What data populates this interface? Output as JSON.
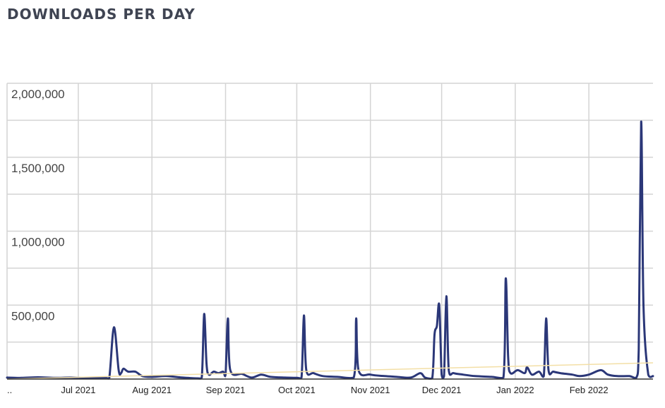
{
  "chart_data": {
    "type": "line",
    "title": "DOWNLOADS PER DAY",
    "xlabel": "",
    "ylabel": "",
    "x_range": [
      "2021-06-01",
      "2022-02-28"
    ],
    "ylim": [
      0,
      2000000
    ],
    "y_ticks": [
      {
        "value": 2000000,
        "label": "2,000,000"
      },
      {
        "value": 1500000,
        "label": "1,500,000"
      },
      {
        "value": 1000000,
        "label": "1,000,000"
      },
      {
        "value": 500000,
        "label": "500,000"
      }
    ],
    "x_ticks": [
      {
        "date": "2021-06-01",
        "label": ".."
      },
      {
        "date": "2021-07-01",
        "label": "Jul 2021"
      },
      {
        "date": "2021-08-01",
        "label": "Aug 2021"
      },
      {
        "date": "2021-09-01",
        "label": "Sep 2021"
      },
      {
        "date": "2021-10-01",
        "label": "Oct 2021"
      },
      {
        "date": "2021-11-01",
        "label": "Nov 2021"
      },
      {
        "date": "2021-12-01",
        "label": "Dec 2021"
      },
      {
        "date": "2022-01-01",
        "label": "Jan 2022"
      },
      {
        "date": "2022-02-01",
        "label": "Feb 2022"
      }
    ],
    "grid": true,
    "colors": {
      "series": "#2b3778",
      "trend": "#f3dfa6",
      "grid": "#d4d4d4",
      "axis": "#333333"
    },
    "series": [
      {
        "role": "downloads",
        "points": [
          [
            "2021-06-01",
            10000
          ],
          [
            "2021-06-07",
            8000
          ],
          [
            "2021-06-14",
            12000
          ],
          [
            "2021-06-21",
            8000
          ],
          [
            "2021-06-28",
            10000
          ],
          [
            "2021-07-05",
            6000
          ],
          [
            "2021-07-12",
            9000
          ],
          [
            "2021-07-14",
            5000
          ],
          [
            "2021-07-16",
            350000
          ],
          [
            "2021-07-18",
            60000
          ],
          [
            "2021-07-19",
            40000
          ],
          [
            "2021-07-20",
            70000
          ],
          [
            "2021-07-22",
            50000
          ],
          [
            "2021-07-25",
            50000
          ],
          [
            "2021-07-28",
            20000
          ],
          [
            "2021-08-01",
            15000
          ],
          [
            "2021-08-07",
            20000
          ],
          [
            "2021-08-14",
            10000
          ],
          [
            "2021-08-20",
            5000
          ],
          [
            "2021-08-22",
            10000
          ],
          [
            "2021-08-23",
            440000
          ],
          [
            "2021-08-24",
            100000
          ],
          [
            "2021-08-25",
            30000
          ],
          [
            "2021-08-27",
            50000
          ],
          [
            "2021-08-29",
            40000
          ],
          [
            "2021-08-31",
            50000
          ],
          [
            "2021-09-01",
            30000
          ],
          [
            "2021-09-02",
            410000
          ],
          [
            "2021-09-03",
            60000
          ],
          [
            "2021-09-08",
            35000
          ],
          [
            "2021-09-12",
            10000
          ],
          [
            "2021-09-16",
            30000
          ],
          [
            "2021-09-20",
            15000
          ],
          [
            "2021-09-26",
            10000
          ],
          [
            "2021-10-01",
            8000
          ],
          [
            "2021-10-03",
            10000
          ],
          [
            "2021-10-04",
            430000
          ],
          [
            "2021-10-05",
            60000
          ],
          [
            "2021-10-08",
            40000
          ],
          [
            "2021-10-12",
            20000
          ],
          [
            "2021-10-18",
            15000
          ],
          [
            "2021-10-25",
            10000
          ],
          [
            "2021-10-26",
            410000
          ],
          [
            "2021-10-27",
            60000
          ],
          [
            "2021-11-01",
            30000
          ],
          [
            "2021-11-07",
            20000
          ],
          [
            "2021-11-12",
            15000
          ],
          [
            "2021-11-18",
            10000
          ],
          [
            "2021-11-22",
            40000
          ],
          [
            "2021-11-24",
            10000
          ],
          [
            "2021-11-27",
            5000
          ],
          [
            "2021-11-28",
            300000
          ],
          [
            "2021-11-29",
            360000
          ],
          [
            "2021-11-30",
            500000
          ],
          [
            "2021-12-01",
            30000
          ],
          [
            "2021-12-02",
            20000
          ],
          [
            "2021-12-03",
            560000
          ],
          [
            "2021-12-04",
            60000
          ],
          [
            "2021-12-06",
            40000
          ],
          [
            "2021-12-10",
            30000
          ],
          [
            "2021-12-15",
            20000
          ],
          [
            "2021-12-22",
            15000
          ],
          [
            "2021-12-27",
            10000
          ],
          [
            "2021-12-28",
            680000
          ],
          [
            "2021-12-29",
            150000
          ],
          [
            "2021-12-30",
            40000
          ],
          [
            "2022-01-02",
            60000
          ],
          [
            "2022-01-05",
            40000
          ],
          [
            "2022-01-06",
            80000
          ],
          [
            "2022-01-08",
            30000
          ],
          [
            "2022-01-11",
            50000
          ],
          [
            "2022-01-13",
            20000
          ],
          [
            "2022-01-14",
            410000
          ],
          [
            "2022-01-15",
            60000
          ],
          [
            "2022-01-17",
            50000
          ],
          [
            "2022-01-20",
            40000
          ],
          [
            "2022-01-25",
            30000
          ],
          [
            "2022-01-28",
            20000
          ],
          [
            "2022-02-01",
            30000
          ],
          [
            "2022-02-06",
            60000
          ],
          [
            "2022-02-09",
            30000
          ],
          [
            "2022-02-13",
            20000
          ],
          [
            "2022-02-18",
            20000
          ],
          [
            "2022-02-21",
            10000
          ],
          [
            "2022-02-22",
            200000
          ],
          [
            "2022-02-23",
            1740000
          ],
          [
            "2022-02-24",
            500000
          ],
          [
            "2022-02-26",
            30000
          ],
          [
            "2022-02-28",
            20000
          ]
        ]
      },
      {
        "role": "trend",
        "points": [
          [
            "2021-06-01",
            0
          ],
          [
            "2022-02-28",
            110000
          ]
        ]
      }
    ]
  }
}
